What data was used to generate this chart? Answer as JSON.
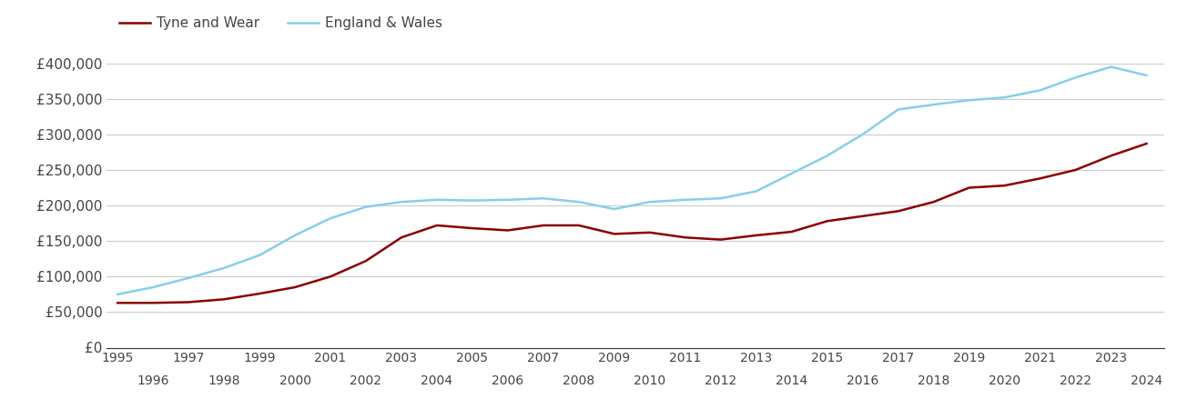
{
  "legend_labels": [
    "Tyne and Wear",
    "England & Wales"
  ],
  "tyne_wear_years": [
    1995,
    1996,
    1997,
    1998,
    1999,
    2000,
    2001,
    2002,
    2003,
    2004,
    2005,
    2006,
    2007,
    2008,
    2009,
    2010,
    2011,
    2012,
    2013,
    2014,
    2015,
    2016,
    2017,
    2018,
    2019,
    2020,
    2021,
    2022,
    2023,
    2024
  ],
  "tyne_wear_values": [
    63000,
    63000,
    64000,
    68000,
    76000,
    85000,
    100000,
    122000,
    155000,
    172000,
    168000,
    165000,
    172000,
    172000,
    160000,
    162000,
    155000,
    152000,
    158000,
    163000,
    178000,
    185000,
    192000,
    205000,
    225000,
    228000,
    238000,
    250000,
    270000,
    287000
  ],
  "england_wales_years": [
    1995,
    1996,
    1997,
    1998,
    1999,
    2000,
    2001,
    2002,
    2003,
    2004,
    2005,
    2006,
    2007,
    2008,
    2009,
    2010,
    2011,
    2012,
    2013,
    2014,
    2015,
    2016,
    2017,
    2018,
    2019,
    2020,
    2021,
    2022,
    2023,
    2024
  ],
  "england_wales_values": [
    75000,
    85000,
    98000,
    112000,
    130000,
    158000,
    182000,
    198000,
    205000,
    208000,
    207000,
    208000,
    210000,
    205000,
    195000,
    205000,
    208000,
    210000,
    220000,
    245000,
    270000,
    300000,
    335000,
    342000,
    348000,
    352000,
    362000,
    380000,
    395000,
    383000
  ],
  "tyne_color": "#8b0000",
  "ew_color": "#87ceeb",
  "ylim": [
    0,
    420000
  ],
  "yticks": [
    0,
    50000,
    100000,
    150000,
    200000,
    250000,
    300000,
    350000,
    400000
  ],
  "ytick_labels": [
    "£0",
    "£50,000",
    "£100,000",
    "£150,000",
    "£200,000",
    "£250,000",
    "£300,000",
    "£350,000",
    "£400,000"
  ],
  "xlim_start": 1994.7,
  "xlim_end": 2024.5,
  "odd_xticks": [
    1995,
    1997,
    1999,
    2001,
    2003,
    2005,
    2007,
    2009,
    2011,
    2013,
    2015,
    2017,
    2019,
    2021,
    2023
  ],
  "even_xticks": [
    1996,
    1998,
    2000,
    2002,
    2004,
    2006,
    2008,
    2010,
    2012,
    2014,
    2016,
    2018,
    2020,
    2022,
    2024
  ],
  "background_color": "#ffffff",
  "grid_color": "#cccccc",
  "line_width": 1.8,
  "tick_fontsize": 10,
  "ytick_fontsize": 11,
  "legend_fontsize": 11
}
